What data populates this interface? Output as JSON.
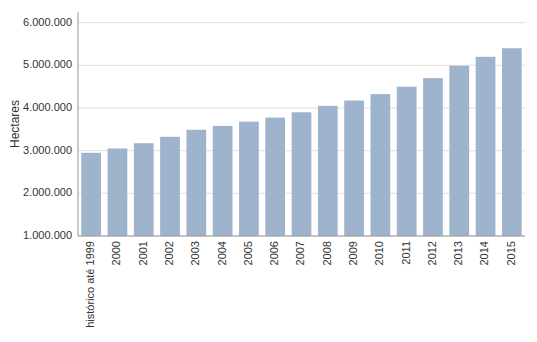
{
  "chart_data": {
    "type": "bar",
    "categories": [
      "histórico até 1999",
      "2000",
      "2001",
      "2002",
      "2003",
      "2004",
      "2005",
      "2006",
      "2007",
      "2008",
      "2009",
      "2010",
      "2011",
      "2012",
      "2013",
      "2014",
      "2015"
    ],
    "values": [
      2950000,
      3050000,
      3175000,
      3325000,
      3490000,
      3580000,
      3680000,
      3775000,
      3900000,
      4050000,
      4175000,
      4325000,
      4500000,
      4700000,
      4990000,
      5200000,
      5400000
    ],
    "color": "#9EB3CC",
    "ylabel": "Hectares",
    "ylim": [
      1000000,
      6250000
    ],
    "yticks": [
      {
        "value": 1000000,
        "label": "1.000.000"
      },
      {
        "value": 2000000,
        "label": "2.000.000"
      },
      {
        "value": 3000000,
        "label": "3.000.000"
      },
      {
        "value": 4000000,
        "label": "4.000.000"
      },
      {
        "value": 5000000,
        "label": "5.000.000"
      },
      {
        "value": 6000000,
        "label": "6.000.000"
      }
    ],
    "grid": true
  }
}
